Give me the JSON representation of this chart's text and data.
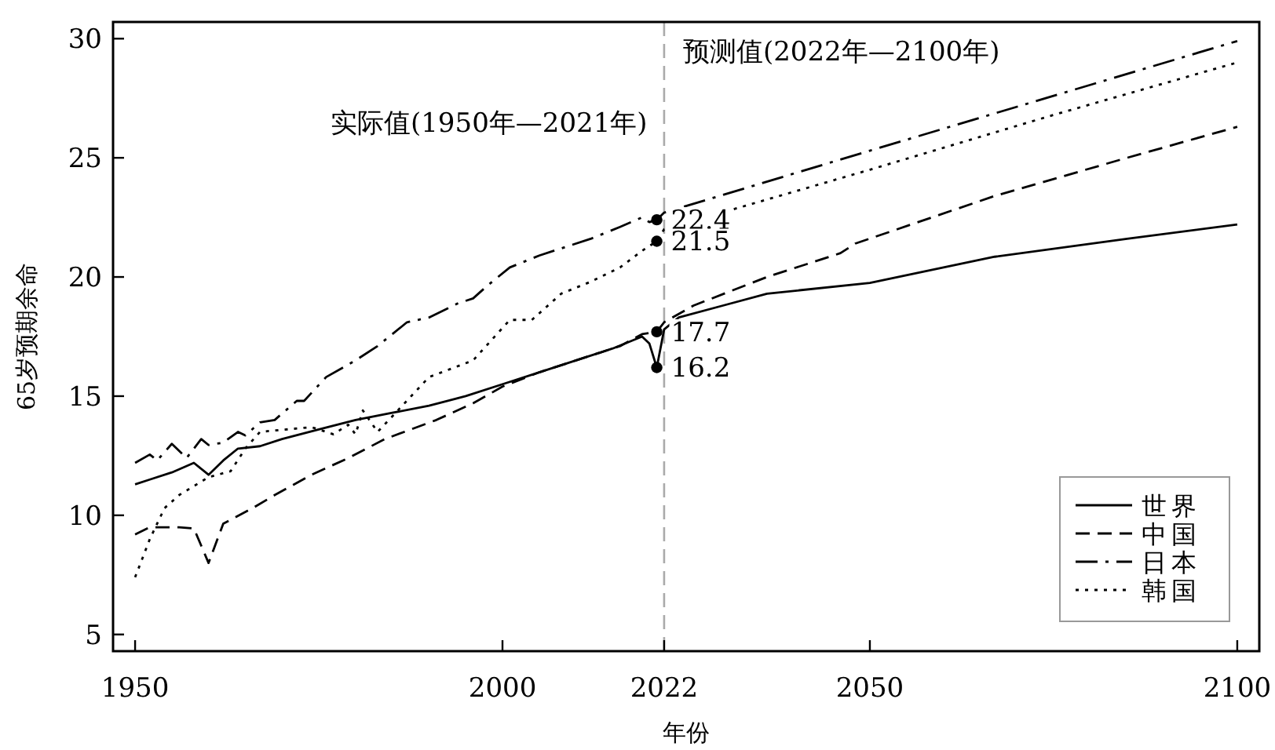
{
  "chart_data": {
    "type": "line",
    "xlabel": "年份",
    "ylabel": "65岁预期余命",
    "xlim": [
      1947,
      2103
    ],
    "ylim": [
      4.3,
      30.7
    ],
    "xticks": [
      1950,
      2000,
      2022,
      2050,
      2100
    ],
    "yticks": [
      5,
      10,
      15,
      20,
      25,
      30
    ],
    "grid": false,
    "legend": "bottom right",
    "series": [
      {
        "name": "世界",
        "color": "#000000",
        "line_style": "solid",
        "x": [
          1950,
          1952,
          1955,
          1958,
          1960,
          1962,
          1964,
          1967,
          1970,
          1975,
          1980,
          1985,
          1990,
          1995,
          2000,
          2005,
          2010,
          2015,
          2019,
          2020,
          2021,
          2022,
          2024,
          2030,
          2036,
          2050,
          2067,
          2085,
          2100
        ],
        "values": [
          11.3,
          11.5,
          11.8,
          12.2,
          11.7,
          12.3,
          12.8,
          12.9,
          13.2,
          13.6,
          14.0,
          14.3,
          14.6,
          15.0,
          15.5,
          16.0,
          16.5,
          17.0,
          17.5,
          17.2,
          16.2,
          17.8,
          18.3,
          18.8,
          19.3,
          19.75,
          20.85,
          21.6,
          22.2
        ],
        "value_labels": [
          null,
          null,
          null,
          null,
          null,
          null,
          null,
          null,
          null,
          null,
          null,
          null,
          null,
          null,
          null,
          null,
          null,
          null,
          null,
          null,
          "16.2",
          null,
          null,
          null,
          null,
          null,
          null,
          null,
          null
        ]
      },
      {
        "name": "中国",
        "color": "#000000",
        "line_style": "dashed",
        "x": [
          1950,
          1952,
          1956,
          1958,
          1960,
          1962,
          1966,
          1969,
          1974,
          1979,
          1984,
          1991,
          1996,
          2000,
          2005,
          2010,
          2016,
          2019,
          2021,
          2022,
          2026,
          2036,
          2046,
          2048,
          2067,
          2085,
          2100
        ],
        "values": [
          9.2,
          9.5,
          9.5,
          9.45,
          8.0,
          9.65,
          10.3,
          10.85,
          11.7,
          12.4,
          13.2,
          14.0,
          14.7,
          15.4,
          16.0,
          16.5,
          17.1,
          17.6,
          17.7,
          18.1,
          18.8,
          20.0,
          21.0,
          21.4,
          23.4,
          25.0,
          26.3
        ],
        "value_labels": [
          null,
          null,
          null,
          null,
          null,
          null,
          null,
          null,
          null,
          null,
          null,
          null,
          null,
          null,
          null,
          null,
          null,
          null,
          "17.7",
          null,
          null,
          null,
          null,
          null,
          null,
          null,
          null
        ]
      },
      {
        "name": "日本",
        "color": "#000000",
        "line_style": "dashdot",
        "x": [
          1950,
          1952,
          1953,
          1955,
          1957,
          1959,
          1960,
          1962,
          1964,
          1965,
          1967,
          1969,
          1972,
          1973,
          1976,
          1980,
          1983,
          1987,
          1990,
          1994,
          1996,
          1998,
          2001,
          2005,
          2008,
          2012,
          2016,
          2019,
          2020,
          2021,
          2022,
          2050,
          2075,
          2100
        ],
        "values": [
          12.2,
          12.55,
          12.3,
          13.0,
          12.4,
          13.2,
          12.95,
          13.05,
          13.5,
          13.35,
          13.9,
          14.0,
          14.8,
          14.8,
          15.8,
          16.5,
          17.1,
          18.1,
          18.3,
          18.9,
          19.1,
          19.65,
          20.4,
          20.9,
          21.2,
          21.6,
          22.1,
          22.5,
          22.3,
          22.4,
          22.7,
          25.3,
          27.6,
          29.9
        ],
        "value_labels": [
          null,
          null,
          null,
          null,
          null,
          null,
          null,
          null,
          null,
          null,
          null,
          null,
          null,
          null,
          null,
          null,
          null,
          null,
          null,
          null,
          null,
          null,
          null,
          null,
          null,
          null,
          null,
          null,
          null,
          "22.4",
          null,
          null,
          null,
          null
        ]
      },
      {
        "name": "韩国",
        "color": "#000000",
        "line_style": "dotted",
        "x": [
          1950,
          1952,
          1954,
          1956,
          1960,
          1963,
          1965,
          1967,
          1974,
          1977,
          1979,
          1980,
          1981,
          1983,
          1985,
          1990,
          1996,
          2001,
          2004,
          2008,
          2012,
          2016,
          2019,
          2021,
          2022,
          2050,
          2075,
          2100
        ],
        "values": [
          7.4,
          9.0,
          10.3,
          10.85,
          11.6,
          11.85,
          12.8,
          13.5,
          13.7,
          13.4,
          13.8,
          13.4,
          14.4,
          13.5,
          14.15,
          15.8,
          16.5,
          18.2,
          18.2,
          19.3,
          19.8,
          20.4,
          21.1,
          21.5,
          22.0,
          24.5,
          26.8,
          29.0
        ],
        "value_labels": [
          null,
          null,
          null,
          null,
          null,
          null,
          null,
          null,
          null,
          null,
          null,
          null,
          null,
          null,
          null,
          null,
          null,
          null,
          null,
          null,
          null,
          null,
          null,
          "21.5",
          null,
          null,
          null,
          null
        ]
      }
    ],
    "ref_lines": [
      {
        "axis": "x",
        "value": 2022,
        "color": "#aaaaaa",
        "line_style": "dashed"
      }
    ],
    "annotations": [
      "实际值(1950年—2021年)",
      "预测值(2022年—2100年)"
    ]
  }
}
